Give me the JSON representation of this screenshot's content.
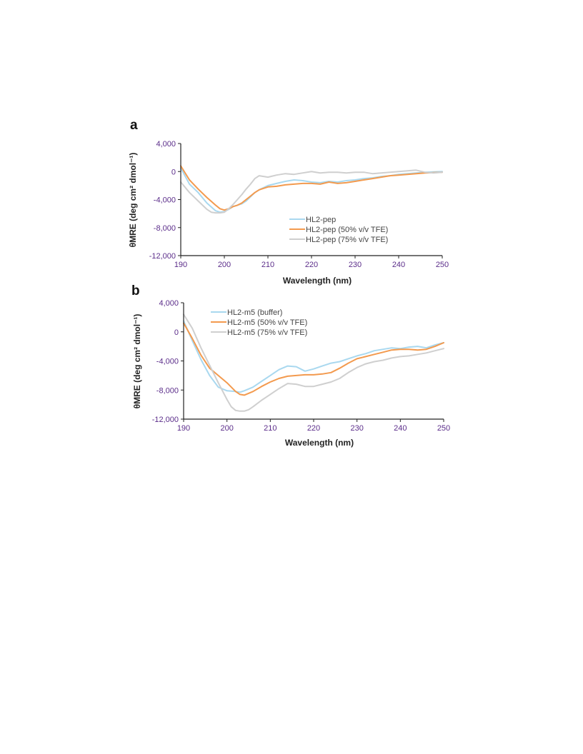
{
  "colors": {
    "buffer": "#a9d8ef",
    "tfe50": "#f39a4e",
    "tfe75": "#cfcfcf",
    "axis": "#222222",
    "tick_text": "#5b2d8a"
  },
  "chart_data": [
    {
      "panel": "a",
      "type": "line",
      "xlabel": "Wavelength (nm)",
      "ylabel": "θMRE (deg cm² dmol⁻¹)",
      "xlim": [
        190,
        250
      ],
      "ylim": [
        -12000,
        4000
      ],
      "xticks": [
        190,
        200,
        210,
        220,
        230,
        240,
        250
      ],
      "yticks": [
        4000,
        0,
        -4000,
        -8000,
        -12000
      ],
      "xtick_labels": [
        "190",
        "200",
        "210",
        "220",
        "230",
        "240",
        "250"
      ],
      "ytick_labels": [
        "4,000",
        "0",
        "-4,000",
        "-8,000",
        "-12,000"
      ],
      "legend_position": "lower-right",
      "series": [
        {
          "name": "HL2-pep",
          "color": "#a9d8ef",
          "x": [
            190,
            192,
            194,
            196,
            198,
            199,
            200,
            201,
            202,
            203,
            204,
            205,
            206,
            207,
            208,
            210,
            212,
            214,
            216,
            218,
            220,
            222,
            224,
            226,
            228,
            230,
            232,
            234,
            236,
            238,
            240,
            242,
            244,
            246,
            248,
            250
          ],
          "y": [
            500,
            -1800,
            -3000,
            -4500,
            -5600,
            -5800,
            -5700,
            -5400,
            -5000,
            -4800,
            -4600,
            -4200,
            -3600,
            -3000,
            -2600,
            -2000,
            -1700,
            -1400,
            -1200,
            -1300,
            -1500,
            -1600,
            -1400,
            -1500,
            -1300,
            -1200,
            -1000,
            -900,
            -700,
            -600,
            -400,
            -300,
            -200,
            -100,
            -50,
            0
          ]
        },
        {
          "name": "HL2-pep (50% v/v TFE)",
          "color": "#f39a4e",
          "x": [
            190,
            192,
            194,
            196,
            198,
            199,
            200,
            201,
            202,
            203,
            204,
            205,
            206,
            207,
            208,
            210,
            212,
            214,
            216,
            218,
            220,
            222,
            224,
            226,
            228,
            230,
            232,
            234,
            236,
            238,
            240,
            242,
            244,
            246,
            248,
            250
          ],
          "y": [
            800,
            -1200,
            -2500,
            -3700,
            -4800,
            -5300,
            -5500,
            -5300,
            -5000,
            -4800,
            -4500,
            -4000,
            -3500,
            -3000,
            -2600,
            -2200,
            -2100,
            -1900,
            -1800,
            -1700,
            -1700,
            -1800,
            -1500,
            -1700,
            -1600,
            -1400,
            -1200,
            -1000,
            -800,
            -600,
            -500,
            -400,
            -300,
            -200,
            -150,
            -100
          ]
        },
        {
          "name": "HL2-pep (75% v/v TFE)",
          "color": "#cfcfcf",
          "x": [
            190,
            192,
            194,
            196,
            197,
            198,
            199,
            200,
            201,
            202,
            203,
            204,
            205,
            206,
            207,
            208,
            210,
            212,
            214,
            216,
            218,
            220,
            222,
            224,
            226,
            228,
            230,
            232,
            234,
            236,
            238,
            240,
            242,
            244,
            246,
            248,
            250
          ],
          "y": [
            -1500,
            -3000,
            -4200,
            -5400,
            -5800,
            -5900,
            -5900,
            -5800,
            -5300,
            -4700,
            -4000,
            -3300,
            -2500,
            -1800,
            -1000,
            -600,
            -800,
            -500,
            -300,
            -400,
            -200,
            0,
            -200,
            -100,
            -100,
            -200,
            -100,
            -100,
            -300,
            -200,
            -100,
            0,
            100,
            200,
            -100,
            -200,
            -100
          ]
        }
      ]
    },
    {
      "panel": "b",
      "type": "line",
      "xlabel": "Wavelength (nm)",
      "ylabel": "θMRE (deg cm² dmol⁻¹)",
      "xlim": [
        190,
        250
      ],
      "ylim": [
        -12000,
        4000
      ],
      "xticks": [
        190,
        200,
        210,
        220,
        230,
        240,
        250
      ],
      "yticks": [
        4000,
        0,
        -4000,
        -8000,
        -12000
      ],
      "xtick_labels": [
        "190",
        "200",
        "210",
        "220",
        "230",
        "240",
        "250"
      ],
      "ytick_labels": [
        "4,000",
        "0",
        "-4,000",
        "-8,000",
        "-12,000"
      ],
      "legend_position": "top-center",
      "series": [
        {
          "name": "HL2-m5 (buffer)",
          "color": "#a9d8ef",
          "x": [
            190,
            192,
            194,
            196,
            198,
            200,
            202,
            203,
            204,
            206,
            208,
            210,
            212,
            214,
            216,
            218,
            220,
            222,
            224,
            226,
            228,
            230,
            232,
            234,
            236,
            238,
            240,
            242,
            244,
            246,
            248,
            250
          ],
          "y": [
            1500,
            -1200,
            -3800,
            -6000,
            -7600,
            -8100,
            -8200,
            -8300,
            -8100,
            -7600,
            -6800,
            -6000,
            -5200,
            -4700,
            -4800,
            -5400,
            -5100,
            -4700,
            -4300,
            -4100,
            -3700,
            -3300,
            -3000,
            -2600,
            -2400,
            -2200,
            -2300,
            -2100,
            -2000,
            -2200,
            -1800,
            -1500
          ]
        },
        {
          "name": "HL2-m5 (50% v/v TFE)",
          "color": "#f39a4e",
          "x": [
            190,
            192,
            194,
            196,
            198,
            200,
            202,
            203,
            204,
            206,
            208,
            210,
            212,
            214,
            216,
            218,
            220,
            222,
            224,
            226,
            228,
            230,
            232,
            234,
            236,
            238,
            240,
            242,
            244,
            246,
            248,
            250
          ],
          "y": [
            1200,
            -900,
            -3200,
            -5000,
            -6000,
            -7000,
            -8200,
            -8600,
            -8700,
            -8200,
            -7500,
            -6900,
            -6400,
            -6100,
            -6000,
            -5900,
            -5900,
            -5800,
            -5600,
            -5000,
            -4300,
            -3700,
            -3400,
            -3100,
            -2800,
            -2500,
            -2400,
            -2400,
            -2500,
            -2400,
            -2000,
            -1500
          ]
        },
        {
          "name": "HL2-m5 (75% v/v TFE)",
          "color": "#cfcfcf",
          "x": [
            190,
            192,
            194,
            196,
            198,
            200,
            201,
            202,
            203,
            204,
            205,
            206,
            208,
            210,
            212,
            214,
            216,
            218,
            220,
            222,
            224,
            226,
            228,
            230,
            232,
            234,
            236,
            238,
            240,
            242,
            244,
            246,
            248,
            250
          ],
          "y": [
            2400,
            500,
            -2200,
            -4600,
            -7000,
            -9300,
            -10300,
            -10800,
            -10900,
            -10900,
            -10700,
            -10300,
            -9400,
            -8600,
            -7800,
            -7100,
            -7200,
            -7500,
            -7500,
            -7200,
            -6900,
            -6400,
            -5600,
            -4900,
            -4400,
            -4100,
            -3900,
            -3600,
            -3400,
            -3300,
            -3100,
            -2900,
            -2600,
            -2300
          ]
        }
      ]
    }
  ]
}
